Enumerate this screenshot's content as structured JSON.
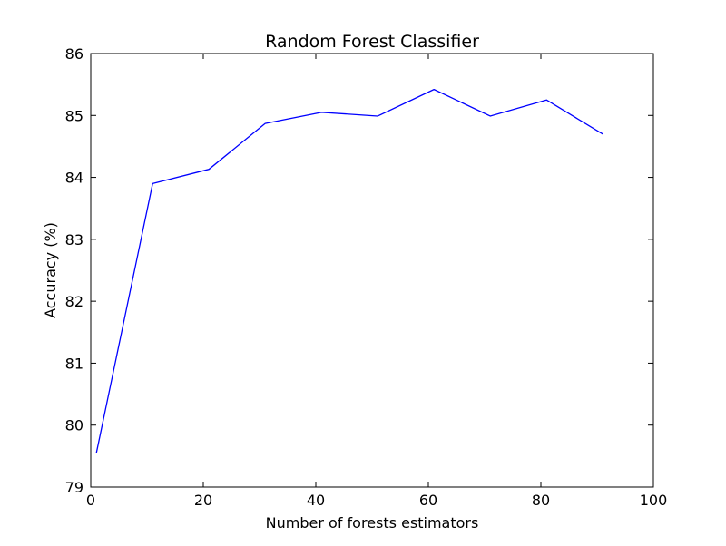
{
  "chart_data": {
    "type": "line",
    "title": "Random Forest Classifier",
    "xlabel": "Number of forests estimators",
    "ylabel": "Accuracy (%)",
    "xlim": [
      0,
      100
    ],
    "ylim": [
      79,
      86
    ],
    "xticks": [
      0,
      20,
      40,
      60,
      80,
      100
    ],
    "yticks": [
      79,
      80,
      81,
      82,
      83,
      84,
      85,
      86
    ],
    "grid": false,
    "series": [
      {
        "name": "accuracy",
        "color": "#0000ff",
        "x": [
          1,
          11,
          21,
          31,
          41,
          51,
          61,
          71,
          81,
          91
        ],
        "y": [
          79.55,
          83.9,
          84.13,
          84.87,
          85.05,
          84.99,
          85.42,
          84.99,
          85.25,
          84.7
        ]
      }
    ]
  }
}
